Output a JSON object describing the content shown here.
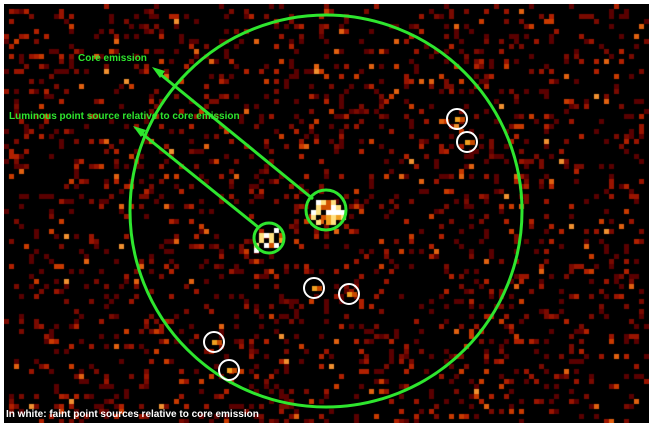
{
  "labels": {
    "core": "Core emission",
    "luminous": "Luminous point source relative to core emission",
    "faint": "In white: faint point sources relative to core emission"
  },
  "colors": {
    "green": "#2ee62e",
    "white": "#ffffff",
    "background": "#000000"
  }
}
